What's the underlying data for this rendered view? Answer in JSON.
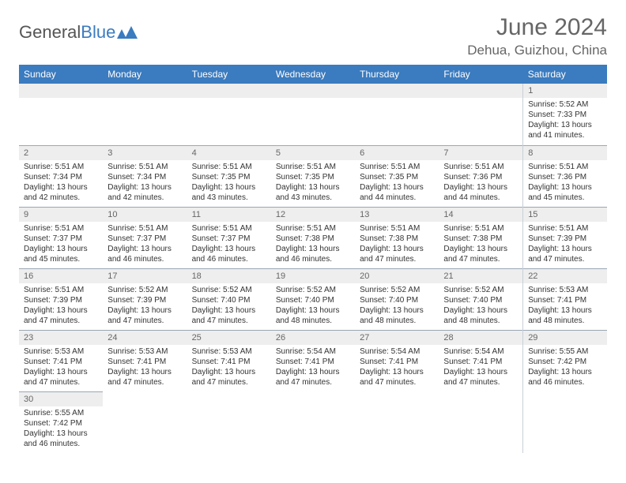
{
  "logo": {
    "text1": "General",
    "text2": "Blue"
  },
  "title": "June 2024",
  "location": "Dehua, Guizhou, China",
  "colors": {
    "header_bg": "#3b7bbf",
    "header_fg": "#ffffff",
    "daynum_bg": "#eeeeee",
    "border": "#9aa7b3"
  },
  "daysOfWeek": [
    "Sunday",
    "Monday",
    "Tuesday",
    "Wednesday",
    "Thursday",
    "Friday",
    "Saturday"
  ],
  "startOffset": 6,
  "days": [
    {
      "n": 1,
      "sr": "5:52 AM",
      "ss": "7:33 PM",
      "dl": "13 hours and 41 minutes."
    },
    {
      "n": 2,
      "sr": "5:51 AM",
      "ss": "7:34 PM",
      "dl": "13 hours and 42 minutes."
    },
    {
      "n": 3,
      "sr": "5:51 AM",
      "ss": "7:34 PM",
      "dl": "13 hours and 42 minutes."
    },
    {
      "n": 4,
      "sr": "5:51 AM",
      "ss": "7:35 PM",
      "dl": "13 hours and 43 minutes."
    },
    {
      "n": 5,
      "sr": "5:51 AM",
      "ss": "7:35 PM",
      "dl": "13 hours and 43 minutes."
    },
    {
      "n": 6,
      "sr": "5:51 AM",
      "ss": "7:35 PM",
      "dl": "13 hours and 44 minutes."
    },
    {
      "n": 7,
      "sr": "5:51 AM",
      "ss": "7:36 PM",
      "dl": "13 hours and 44 minutes."
    },
    {
      "n": 8,
      "sr": "5:51 AM",
      "ss": "7:36 PM",
      "dl": "13 hours and 45 minutes."
    },
    {
      "n": 9,
      "sr": "5:51 AM",
      "ss": "7:37 PM",
      "dl": "13 hours and 45 minutes."
    },
    {
      "n": 10,
      "sr": "5:51 AM",
      "ss": "7:37 PM",
      "dl": "13 hours and 46 minutes."
    },
    {
      "n": 11,
      "sr": "5:51 AM",
      "ss": "7:37 PM",
      "dl": "13 hours and 46 minutes."
    },
    {
      "n": 12,
      "sr": "5:51 AM",
      "ss": "7:38 PM",
      "dl": "13 hours and 46 minutes."
    },
    {
      "n": 13,
      "sr": "5:51 AM",
      "ss": "7:38 PM",
      "dl": "13 hours and 47 minutes."
    },
    {
      "n": 14,
      "sr": "5:51 AM",
      "ss": "7:38 PM",
      "dl": "13 hours and 47 minutes."
    },
    {
      "n": 15,
      "sr": "5:51 AM",
      "ss": "7:39 PM",
      "dl": "13 hours and 47 minutes."
    },
    {
      "n": 16,
      "sr": "5:51 AM",
      "ss": "7:39 PM",
      "dl": "13 hours and 47 minutes."
    },
    {
      "n": 17,
      "sr": "5:52 AM",
      "ss": "7:39 PM",
      "dl": "13 hours and 47 minutes."
    },
    {
      "n": 18,
      "sr": "5:52 AM",
      "ss": "7:40 PM",
      "dl": "13 hours and 47 minutes."
    },
    {
      "n": 19,
      "sr": "5:52 AM",
      "ss": "7:40 PM",
      "dl": "13 hours and 48 minutes."
    },
    {
      "n": 20,
      "sr": "5:52 AM",
      "ss": "7:40 PM",
      "dl": "13 hours and 48 minutes."
    },
    {
      "n": 21,
      "sr": "5:52 AM",
      "ss": "7:40 PM",
      "dl": "13 hours and 48 minutes."
    },
    {
      "n": 22,
      "sr": "5:53 AM",
      "ss": "7:41 PM",
      "dl": "13 hours and 48 minutes."
    },
    {
      "n": 23,
      "sr": "5:53 AM",
      "ss": "7:41 PM",
      "dl": "13 hours and 47 minutes."
    },
    {
      "n": 24,
      "sr": "5:53 AM",
      "ss": "7:41 PM",
      "dl": "13 hours and 47 minutes."
    },
    {
      "n": 25,
      "sr": "5:53 AM",
      "ss": "7:41 PM",
      "dl": "13 hours and 47 minutes."
    },
    {
      "n": 26,
      "sr": "5:54 AM",
      "ss": "7:41 PM",
      "dl": "13 hours and 47 minutes."
    },
    {
      "n": 27,
      "sr": "5:54 AM",
      "ss": "7:41 PM",
      "dl": "13 hours and 47 minutes."
    },
    {
      "n": 28,
      "sr": "5:54 AM",
      "ss": "7:41 PM",
      "dl": "13 hours and 47 minutes."
    },
    {
      "n": 29,
      "sr": "5:55 AM",
      "ss": "7:42 PM",
      "dl": "13 hours and 46 minutes."
    },
    {
      "n": 30,
      "sr": "5:55 AM",
      "ss": "7:42 PM",
      "dl": "13 hours and 46 minutes."
    }
  ],
  "labels": {
    "sunrise": "Sunrise:",
    "sunset": "Sunset:",
    "daylight": "Daylight:"
  }
}
